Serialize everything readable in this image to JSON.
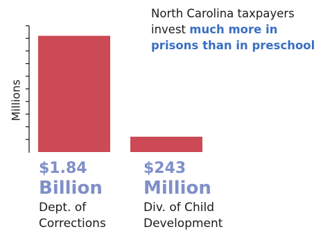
{
  "headline": {
    "line1": "North Carolina taxpayers",
    "line2_plain": "invest ",
    "line2_emph": "much more in",
    "line3_emph": "prisons than in preschool"
  },
  "chart_data": {
    "type": "bar",
    "ylabel": "Millions",
    "categories": [
      "Dept. of Corrections",
      "Div. of Child Development"
    ],
    "values": [
      1840,
      243
    ],
    "ylim": [
      0,
      2000
    ],
    "tick_count": 10,
    "bar_color": "#cc4a55",
    "value_labels": [
      {
        "amount": "$1.84",
        "unit": "Billion"
      },
      {
        "amount": "$243",
        "unit": "Million"
      }
    ],
    "category_lines": [
      [
        "Dept. of",
        "Corrections"
      ],
      [
        "Div. of Child",
        "Development"
      ]
    ]
  }
}
